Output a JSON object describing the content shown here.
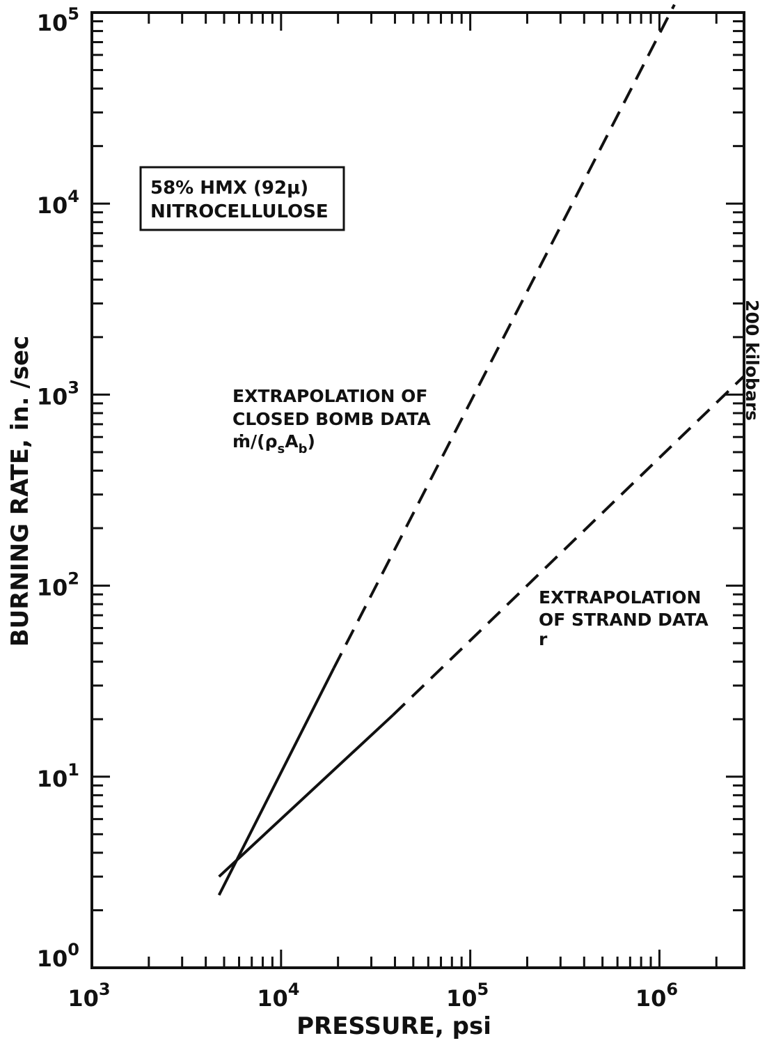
{
  "chart_data": {
    "type": "line",
    "title": "",
    "xlabel": "PRESSURE, psi",
    "ylabel": "BURNING RATE, in. /sec",
    "x_scale": "log",
    "y_scale": "log",
    "xlim": [
      1000,
      2800000
    ],
    "ylim": [
      1,
      100000
    ],
    "grid": false,
    "x_ticks": [
      {
        "base": "10",
        "exp": "3",
        "value": 1000
      },
      {
        "base": "10",
        "exp": "4",
        "value": 10000
      },
      {
        "base": "10",
        "exp": "5",
        "value": 100000
      },
      {
        "base": "10",
        "exp": "6",
        "value": 1000000
      }
    ],
    "y_ticks": [
      {
        "base": "10",
        "exp": "0",
        "value": 1
      },
      {
        "base": "10",
        "exp": "1",
        "value": 10
      },
      {
        "base": "10",
        "exp": "2",
        "value": 100
      },
      {
        "base": "10",
        "exp": "3",
        "value": 1000
      },
      {
        "base": "10",
        "exp": "4",
        "value": 10000
      },
      {
        "base": "10",
        "exp": "5",
        "value": 100000
      }
    ],
    "legend_box": {
      "line1": "58% HMX (92μ)",
      "line2": "NITROCELLULOSE"
    },
    "side_label": "200 kilobars",
    "series": [
      {
        "segments": [
          {
            "style": "solid",
            "x": [
              4700,
              19000
            ],
            "y": [
              2.4,
              37
            ]
          },
          {
            "style": "dashed",
            "x": [
              19000,
              1200000
            ],
            "y": [
              37,
              110000
            ]
          }
        ]
      },
      {
        "segments": [
          {
            "style": "solid",
            "x": [
              4700,
              39000
            ],
            "y": [
              3.0,
              21
            ]
          },
          {
            "style": "dashed",
            "x": [
              39000,
              2800000
            ],
            "y": [
              21,
              1250
            ]
          }
        ]
      }
    ],
    "annotations": [
      {
        "lines": [
          "EXTRAPOLATION OF",
          "CLOSED BOMB DATA",
          "ṁ/(ρ",
          "s",
          "A",
          "b",
          ")"
        ]
      },
      {
        "lines": [
          "EXTRAPOLATION",
          "OF STRAND DATA",
          "r"
        ]
      }
    ]
  }
}
